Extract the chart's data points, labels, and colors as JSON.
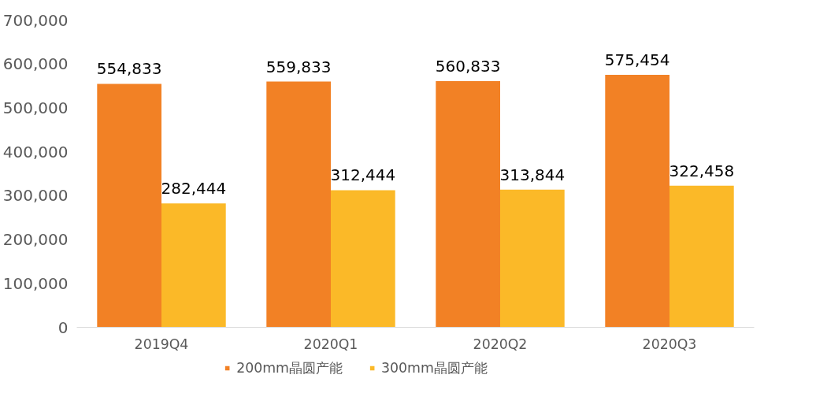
{
  "chart_data": {
    "type": "bar",
    "categories": [
      "2019Q4",
      "2020Q1",
      "2020Q2",
      "2020Q3"
    ],
    "series": [
      {
        "name": "200mm晶圆产能",
        "color": "#f28125",
        "values": [
          554833,
          559833,
          560833,
          575454
        ],
        "value_labels": [
          "554,833",
          "559,833",
          "560,833",
          "575,454"
        ]
      },
      {
        "name": "300mm晶圆产能",
        "color": "#fbb928",
        "values": [
          282444,
          312444,
          313844,
          322458
        ],
        "value_labels": [
          "282,444",
          "312,444",
          "313,844",
          "322,458"
        ]
      }
    ],
    "ylim": [
      0,
      700000
    ],
    "yticks": [
      {
        "value": 0,
        "label": "0"
      },
      {
        "value": 100000,
        "label": "100,000"
      },
      {
        "value": 200000,
        "label": "200,000"
      },
      {
        "value": 300000,
        "label": "300,000"
      },
      {
        "value": 400000,
        "label": "400,000"
      },
      {
        "value": 500000,
        "label": "500,000"
      },
      {
        "value": 600000,
        "label": "600,000"
      },
      {
        "value": 700000,
        "label": "700,000"
      }
    ],
    "grid": false,
    "legend": "bottom"
  }
}
